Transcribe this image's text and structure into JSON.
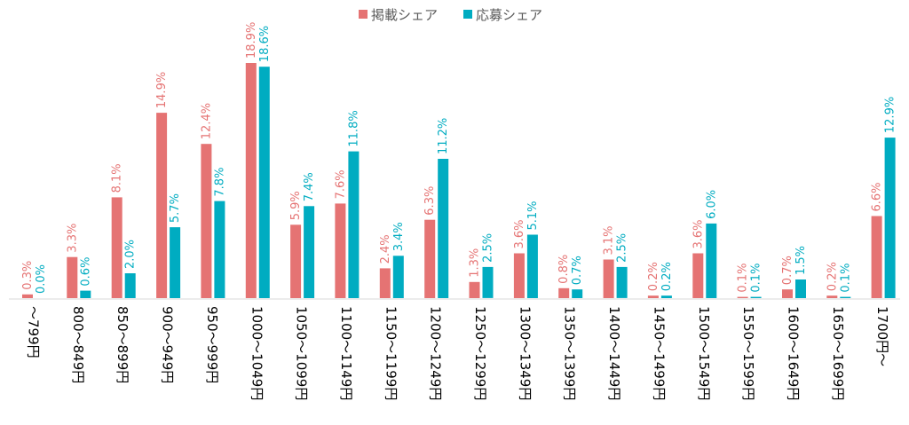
{
  "chart_data": {
    "type": "bar",
    "categories": [
      "～799円",
      "800～849円",
      "850～899円",
      "900～949円",
      "950～999円",
      "1000～1049円",
      "1050～1099円",
      "1100～1149円",
      "1150～1199円",
      "1200～1249円",
      "1250～1299円",
      "1300～1349円",
      "1350～1399円",
      "1400～1449円",
      "1450～1499円",
      "1500～1549円",
      "1550～1599円",
      "1600～1649円",
      "1650～1699円",
      "1700円～"
    ],
    "series": [
      {
        "name": "掲載シェア",
        "color": "#E57373",
        "values": [
          0.3,
          3.3,
          8.1,
          14.9,
          12.4,
          18.9,
          5.9,
          7.6,
          2.4,
          6.3,
          1.3,
          3.6,
          0.8,
          3.1,
          0.2,
          3.6,
          0.1,
          0.7,
          0.2,
          6.6
        ],
        "labels": [
          "0.3%",
          "3.3%",
          "8.1%",
          "14.9%",
          "12.4%",
          "18.9%",
          "5.9%",
          "7.6%",
          "2.4%",
          "6.3%",
          "1.3%",
          "3.6%",
          "0.8%",
          "3.1%",
          "0.2%",
          "3.6%",
          "0.1%",
          "0.7%",
          "0.2%",
          "6.6%"
        ]
      },
      {
        "name": "応募シェア",
        "color": "#00ACC1",
        "values": [
          0.0,
          0.6,
          2.0,
          5.7,
          7.8,
          18.6,
          7.4,
          11.8,
          3.4,
          11.2,
          2.5,
          5.1,
          0.7,
          2.5,
          0.2,
          6.0,
          0.1,
          1.5,
          0.1,
          12.9
        ],
        "labels": [
          "0.0%",
          "0.6%",
          "2.0%",
          "5.7%",
          "7.8%",
          "18.6%",
          "7.4%",
          "11.8%",
          "3.4%",
          "11.2%",
          "2.5%",
          "5.1%",
          "0.7%",
          "2.5%",
          "0.2%",
          "6.0%",
          "0.1%",
          "1.5%",
          "0.1%",
          "12.9%"
        ]
      }
    ],
    "ylim": [
      0,
      20
    ],
    "legend_position": "top-center",
    "grid": false,
    "title": "",
    "xlabel": "",
    "ylabel": ""
  }
}
